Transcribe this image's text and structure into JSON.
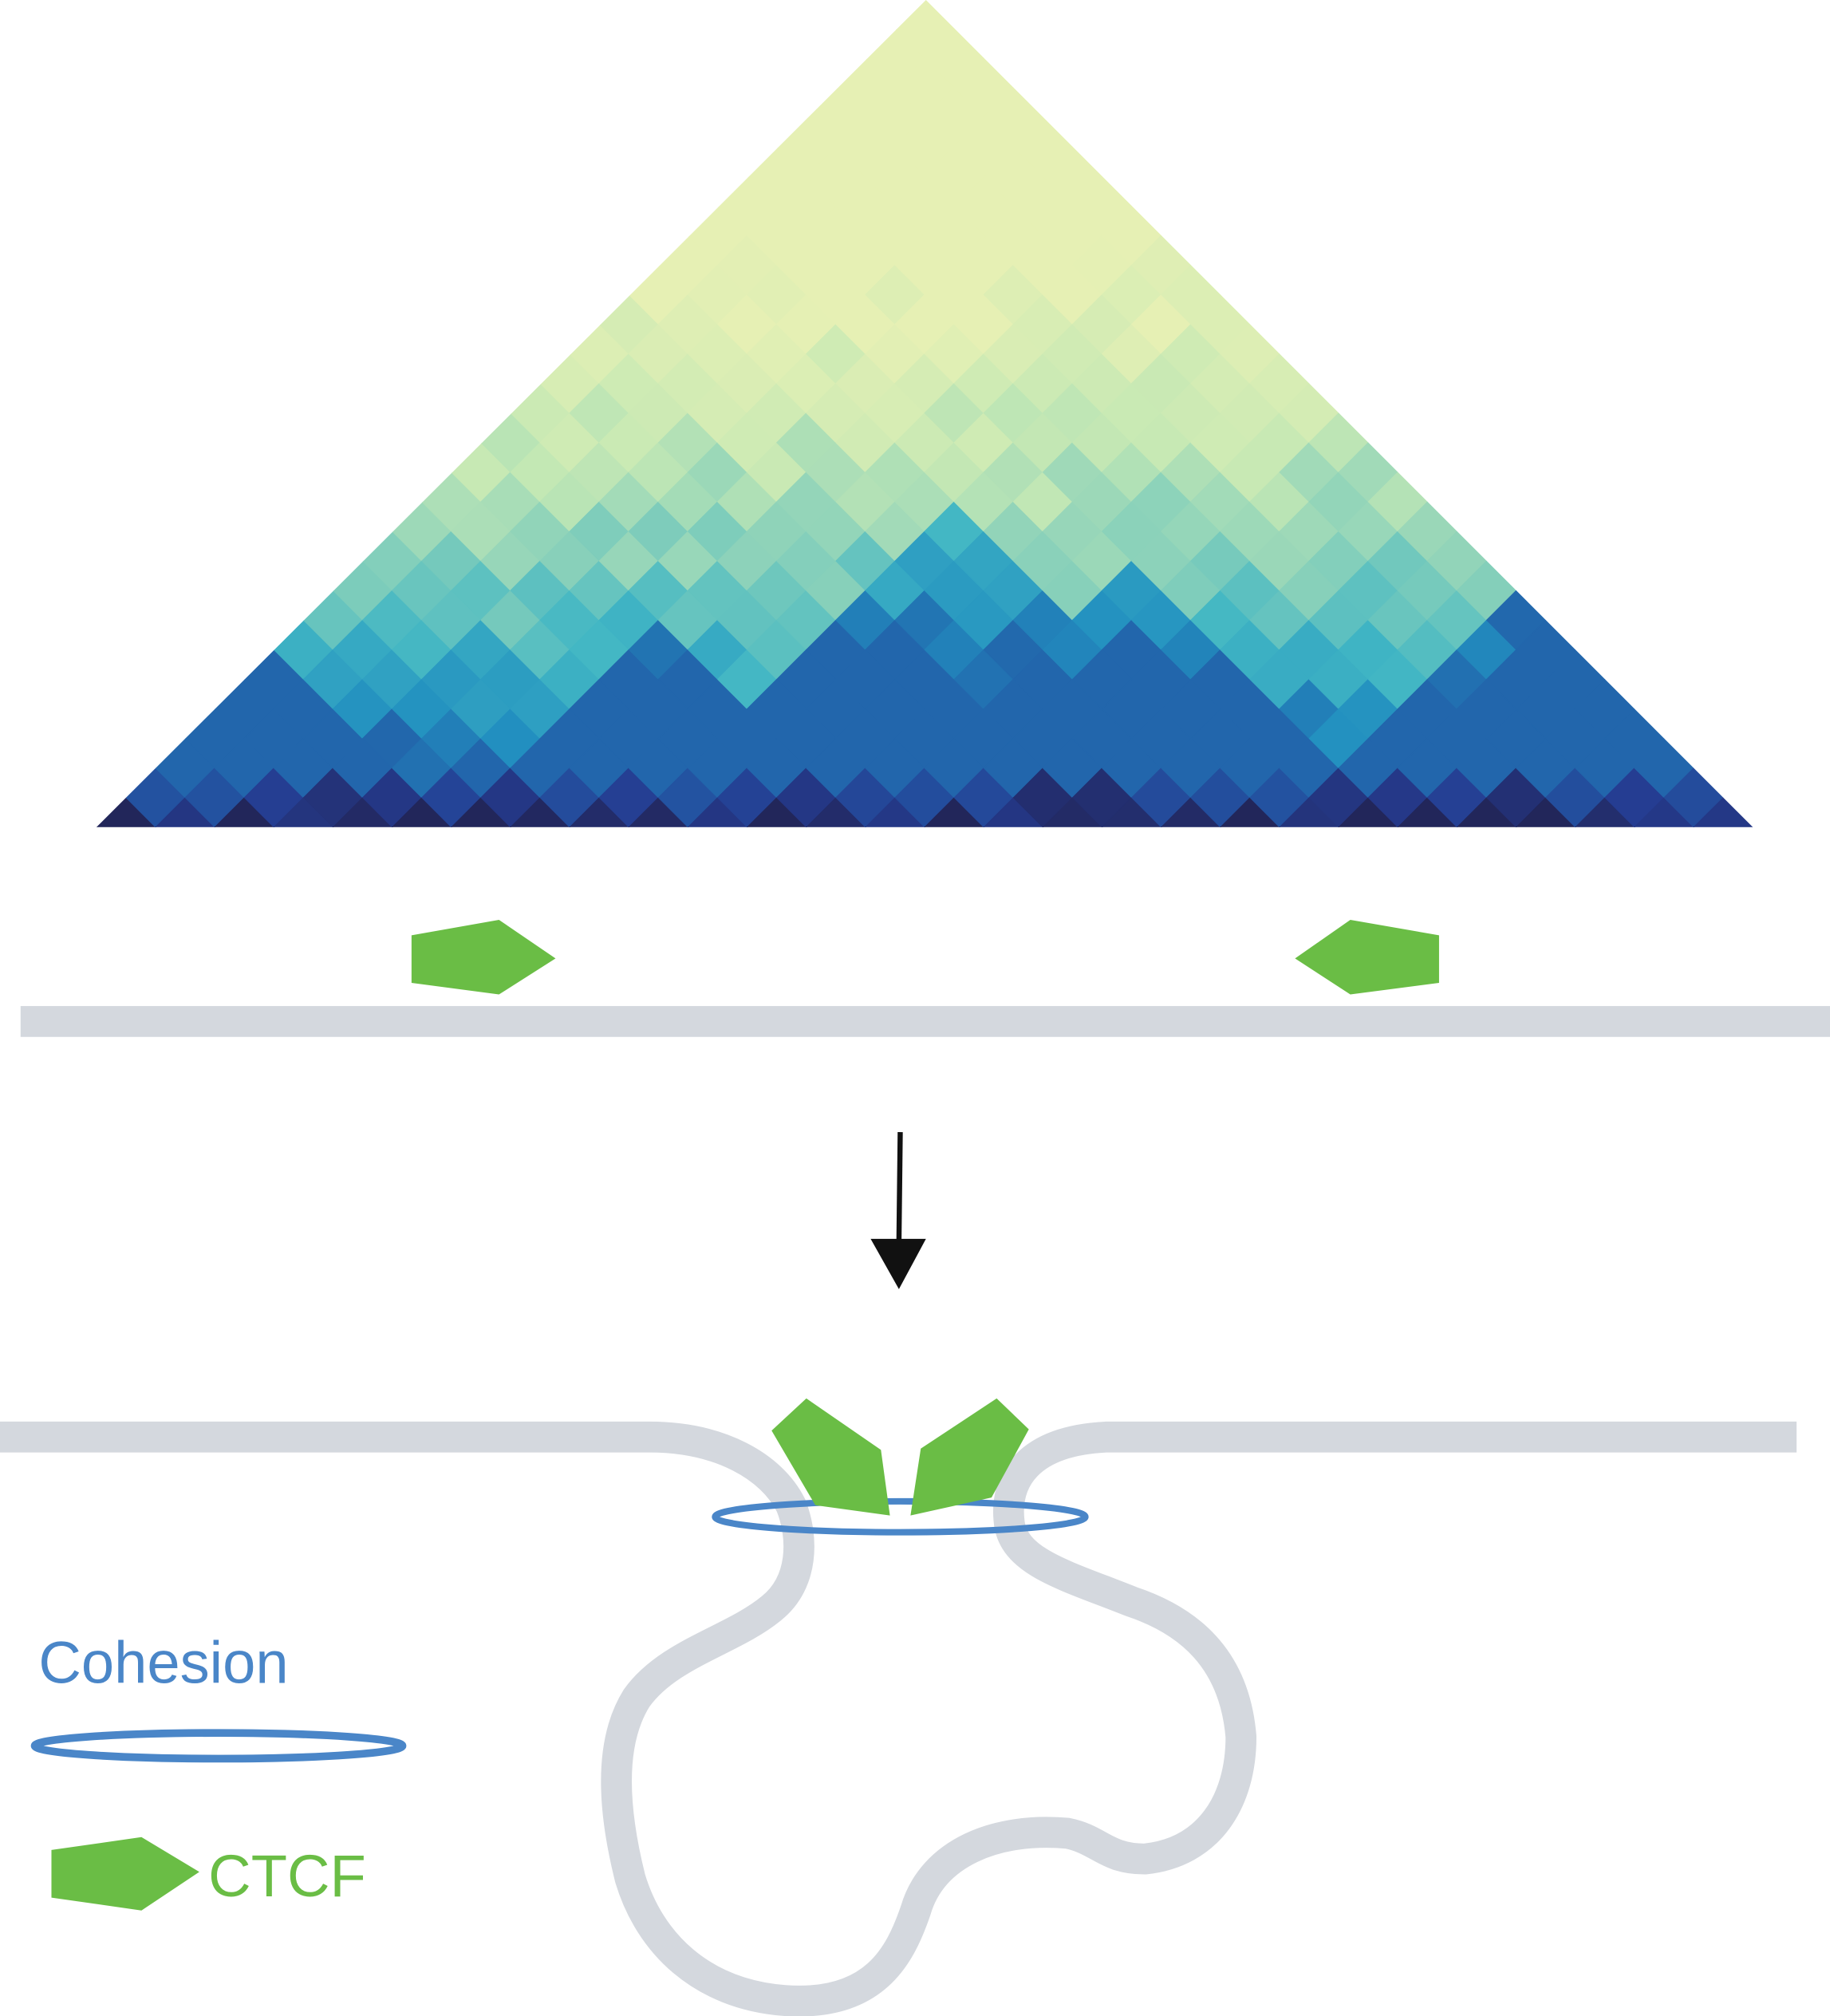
{
  "legend": {
    "cohesin_label": "Cohesion",
    "ctcf_label": "CTCF"
  }
}
